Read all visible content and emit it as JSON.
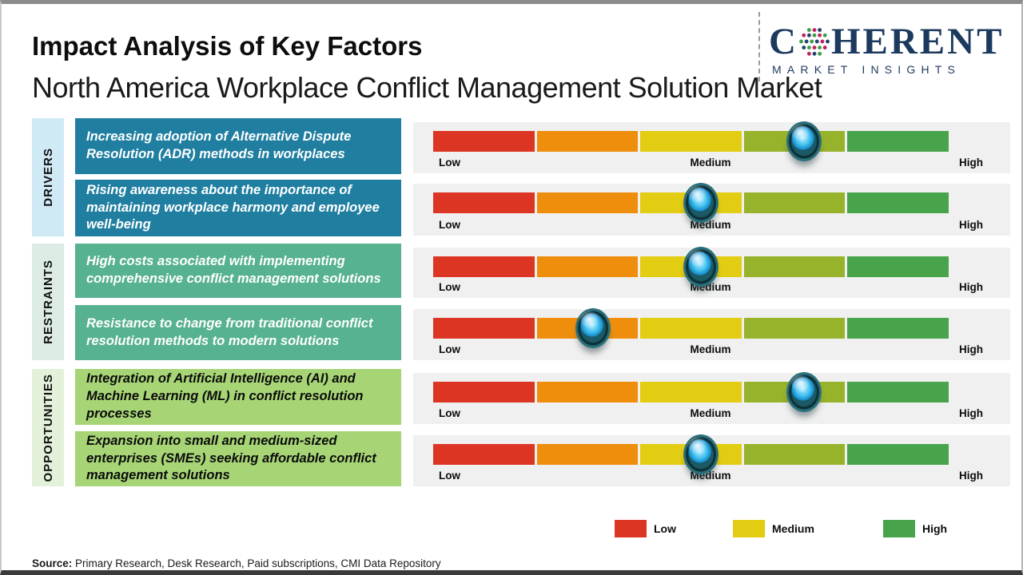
{
  "header": {
    "title": "Impact Analysis of Key Factors",
    "subtitle": "North America Workplace Conflict Management Solution Market"
  },
  "logo": {
    "brand_prefix": "C",
    "brand_suffix": "HERENT",
    "tagline": "MARKET INSIGHTS",
    "color": "#1c3a5e",
    "globe_icon": "dotted-globe-icon"
  },
  "scale": {
    "low": "Low",
    "medium": "Medium",
    "high": "High"
  },
  "colors": {
    "segments": [
      "#DC3523",
      "#EF8E0D",
      "#E2CD12",
      "#97B32C",
      "#47A44B"
    ],
    "panel_bg": "#F0F0F0",
    "marker_core": "#2FB7EE",
    "marker_ring": "#16454E"
  },
  "categories": [
    {
      "name": "DRIVERS",
      "label_bg": "#CFE9F5",
      "box_bg": "#207FA1",
      "box_text": "#FFFFFF",
      "factors": [
        {
          "text": "Increasing adoption of Alternative Dispute Resolution (ADR) methods in workplaces",
          "impact": 0.72
        },
        {
          "text": "Rising awareness about the importance of maintaining workplace harmony and employee well-being",
          "impact": 0.52
        }
      ]
    },
    {
      "name": "RESTRAINTS",
      "label_bg": "#DCEBE3",
      "box_bg": "#57B28F",
      "box_text": "#FFFFFF",
      "factors": [
        {
          "text": "High costs associated with implementing comprehensive conflict management solutions",
          "impact": 0.52
        },
        {
          "text": "Resistance to change from traditional conflict resolution methods to modern solutions",
          "impact": 0.31
        }
      ]
    },
    {
      "name": "OPPORTUNITIES",
      "label_bg": "#E3F1DA",
      "box_bg": "#A7D576",
      "box_text": "#0B0B0B",
      "factors": [
        {
          "text": "Integration of Artificial Intelligence (AI) and Machine Learning (ML) in conflict resolution processes",
          "impact": 0.72
        },
        {
          "text": "Expansion into small and medium-sized enterprises (SMEs) seeking affordable conflict management solutions",
          "impact": 0.52
        }
      ]
    }
  ],
  "legend": [
    {
      "label": "Low",
      "color": "#DC3523"
    },
    {
      "label": "Medium",
      "color": "#E2CD12"
    },
    {
      "label": "High",
      "color": "#47A44B"
    }
  ],
  "footer": {
    "source_label": "Source:",
    "source_text": " Primary Research, Desk Research, Paid subscriptions, CMI Data Repository"
  },
  "chart_data": {
    "type": "bar",
    "title": "Impact Analysis of Key Factors",
    "subtitle": "North America Workplace Conflict Management Solution Market",
    "x_scale": {
      "labels": [
        "Low",
        "Medium",
        "High"
      ],
      "range": [
        0,
        1
      ],
      "segment_count": 5
    },
    "legend": [
      "Low",
      "Medium",
      "High"
    ],
    "legend_position": "bottom",
    "series": [
      {
        "category": "DRIVERS",
        "factor": "Increasing adoption of Alternative Dispute Resolution (ADR) methods in workplaces",
        "impact_position": 0.72,
        "impact_level": "Medium-High"
      },
      {
        "category": "DRIVERS",
        "factor": "Rising awareness about the importance of maintaining workplace harmony and employee well-being",
        "impact_position": 0.52,
        "impact_level": "Medium"
      },
      {
        "category": "RESTRAINTS",
        "factor": "High costs associated with implementing comprehensive conflict management solutions",
        "impact_position": 0.52,
        "impact_level": "Medium"
      },
      {
        "category": "RESTRAINTS",
        "factor": "Resistance to change from traditional conflict resolution methods to modern solutions",
        "impact_position": 0.31,
        "impact_level": "Low-Medium"
      },
      {
        "category": "OPPORTUNITIES",
        "factor": "Integration of Artificial Intelligence (AI) and Machine Learning (ML) in conflict resolution processes",
        "impact_position": 0.72,
        "impact_level": "Medium-High"
      },
      {
        "category": "OPPORTUNITIES",
        "factor": "Expansion into small and medium-sized enterprises (SMEs) seeking affordable conflict management solutions",
        "impact_position": 0.52,
        "impact_level": "Medium"
      }
    ]
  }
}
